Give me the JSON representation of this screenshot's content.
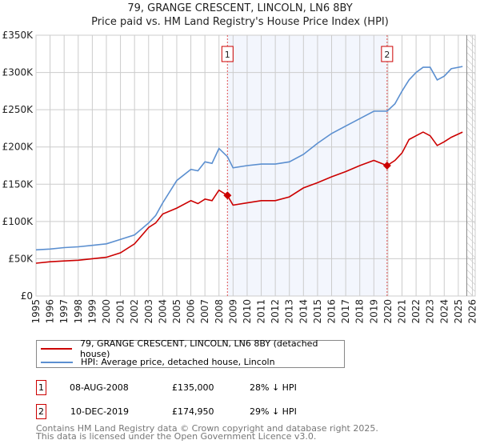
{
  "chart_data": {
    "type": "line",
    "title": "79, GRANGE CRESCENT, LINCOLN, LN6 8BY",
    "subtitle": "Price paid vs. HM Land Registry's House Price Index (HPI)",
    "xlabel": "",
    "ylabel": "",
    "xlim": [
      1995,
      2026.2
    ],
    "ylim": [
      0,
      350000
    ],
    "y_ticks": [
      0,
      50000,
      100000,
      150000,
      200000,
      250000,
      300000,
      350000
    ],
    "y_tick_labels": [
      "£0",
      "£50K",
      "£100K",
      "£150K",
      "£200K",
      "£250K",
      "£300K",
      "£350K"
    ],
    "x_ticks": [
      1995,
      1996,
      1997,
      1998,
      1999,
      2000,
      2001,
      2002,
      2003,
      2004,
      2005,
      2006,
      2007,
      2008,
      2009,
      2010,
      2011,
      2012,
      2013,
      2014,
      2015,
      2016,
      2017,
      2018,
      2019,
      2020,
      2021,
      2022,
      2023,
      2024,
      2025,
      2026
    ],
    "x_tick_labels": [
      "1995",
      "1996",
      "1997",
      "1998",
      "1999",
      "2000",
      "2001",
      "2002",
      "2003",
      "2004",
      "2005",
      "2006",
      "2007",
      "2008",
      "2009",
      "2010",
      "2011",
      "2012",
      "2013",
      "2014",
      "2015",
      "2016",
      "2017",
      "2018",
      "2019",
      "2020",
      "2021",
      "2022",
      "2023",
      "2024",
      "2025",
      "2026"
    ],
    "grid": true,
    "shaded_range": [
      2008.6,
      2019.94
    ],
    "forecast_hatch_from": 2025.6,
    "series": [
      {
        "name": "79, GRANGE CRESCENT, LINCOLN, LN6 8BY (detached house)",
        "color": "#cc0000",
        "x": [
          1995,
          1996,
          1997,
          1998,
          1999,
          2000,
          2001,
          2002,
          2003,
          2003.5,
          2004,
          2005,
          2006,
          2006.5,
          2007,
          2007.5,
          2008,
          2008.6,
          2009,
          2010,
          2011,
          2012,
          2013,
          2014,
          2015,
          2016,
          2017,
          2018,
          2019,
          2019.94,
          2020.5,
          2021,
          2021.5,
          2022,
          2022.5,
          2023,
          2023.5,
          2024,
          2024.5,
          2025.3
        ],
        "y": [
          44000,
          46000,
          47000,
          48000,
          50000,
          52000,
          58000,
          70000,
          92000,
          98000,
          110000,
          118000,
          128000,
          124000,
          130000,
          128000,
          142000,
          135000,
          122000,
          125000,
          128000,
          128000,
          133000,
          145000,
          152000,
          160000,
          167000,
          175000,
          182000,
          174950,
          182000,
          192000,
          210000,
          215000,
          220000,
          215000,
          202000,
          207000,
          213000,
          220000
        ]
      },
      {
        "name": "HPI: Average price, detached house, Lincoln",
        "color": "#5b8fd0",
        "x": [
          1995,
          1996,
          1997,
          1998,
          1999,
          2000,
          2001,
          2002,
          2003,
          2003.5,
          2004,
          2005,
          2006,
          2006.5,
          2007,
          2007.5,
          2008,
          2008.6,
          2009,
          2010,
          2011,
          2012,
          2013,
          2014,
          2015,
          2016,
          2017,
          2018,
          2019,
          2019.94,
          2020.5,
          2021,
          2021.5,
          2022,
          2022.5,
          2023,
          2023.5,
          2024,
          2024.5,
          2025.3
        ],
        "y": [
          62000,
          63000,
          65000,
          66000,
          68000,
          70000,
          76000,
          82000,
          98000,
          108000,
          125000,
          155000,
          170000,
          168000,
          180000,
          178000,
          198000,
          187000,
          172000,
          175000,
          177000,
          177000,
          180000,
          190000,
          205000,
          218000,
          228000,
          238000,
          248000,
          248000,
          258000,
          275000,
          290000,
          300000,
          307000,
          307000,
          290000,
          295000,
          305000,
          308000
        ]
      }
    ],
    "annotations": [
      {
        "label": "1",
        "x": 2008.6,
        "y": 135000
      },
      {
        "label": "2",
        "x": 2019.94,
        "y": 174950
      }
    ]
  },
  "legend": {
    "items": [
      {
        "label": "79, GRANGE CRESCENT, LINCOLN, LN6 8BY (detached house)",
        "color": "#cc0000"
      },
      {
        "label": "HPI: Average price, detached house, Lincoln",
        "color": "#5b8fd0"
      }
    ]
  },
  "sales": [
    {
      "num": "1",
      "date": "08-AUG-2008",
      "price": "£135,000",
      "hpi": "28% ↓ HPI"
    },
    {
      "num": "2",
      "date": "10-DEC-2019",
      "price": "£174,950",
      "hpi": "29% ↓ HPI"
    }
  ],
  "footer": {
    "line1": "Contains HM Land Registry data © Crown copyright and database right 2025.",
    "line2": "This data is licensed under the Open Government Licence v3.0."
  }
}
